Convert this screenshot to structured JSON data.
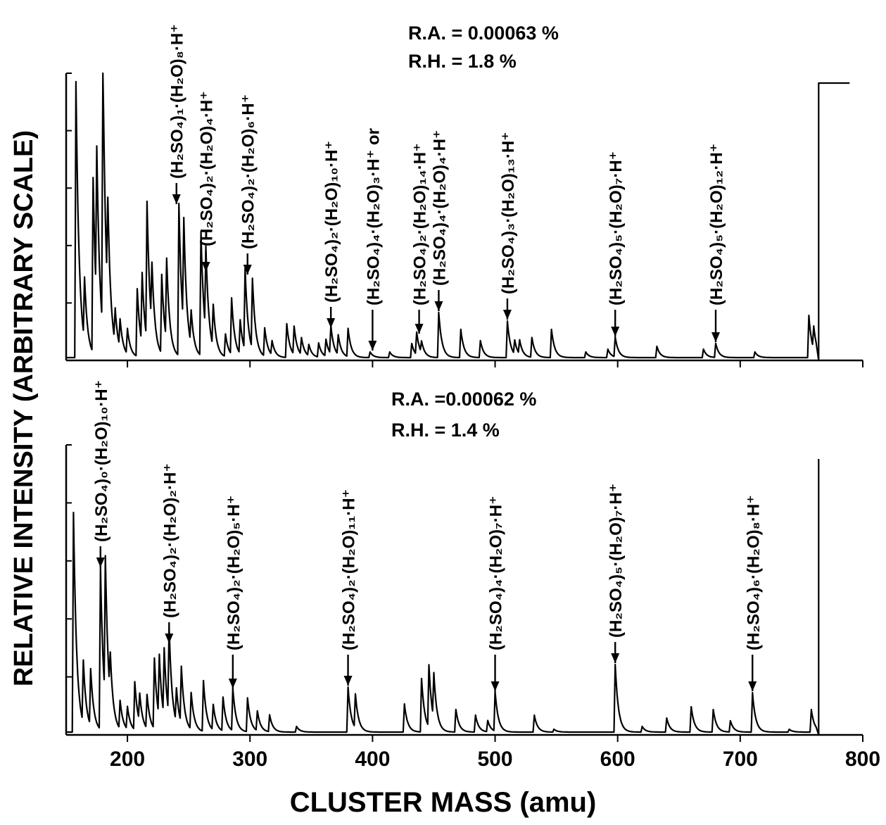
{
  "chart_data": [
    {
      "type": "line",
      "panel": "top",
      "conditions": [
        "R.A. = 0.00063 %",
        "R.H. = 1.8 %"
      ],
      "xlabel": "CLUSTER MASS (amu)",
      "ylabel": "RELATIVE INTENSITY (ARBITRARY SCALE)",
      "xlim": [
        150,
        800
      ],
      "peaks": [
        {
          "x": 158,
          "y": 0.98
        },
        {
          "x": 165,
          "y": 0.22
        },
        {
          "x": 172,
          "y": 0.62
        },
        {
          "x": 175,
          "y": 0.55
        },
        {
          "x": 180,
          "y": 0.96
        },
        {
          "x": 184,
          "y": 0.34
        },
        {
          "x": 190,
          "y": 0.12
        },
        {
          "x": 194,
          "y": 0.1
        },
        {
          "x": 200,
          "y": 0.09
        },
        {
          "x": 208,
          "y": 0.24
        },
        {
          "x": 212,
          "y": 0.25
        },
        {
          "x": 216,
          "y": 0.49
        },
        {
          "x": 220,
          "y": 0.22
        },
        {
          "x": 228,
          "y": 0.28
        },
        {
          "x": 232,
          "y": 0.29
        },
        {
          "x": 242,
          "y": 0.54
        },
        {
          "x": 246,
          "y": 0.38
        },
        {
          "x": 252,
          "y": 0.12
        },
        {
          "x": 260,
          "y": 0.44
        },
        {
          "x": 264,
          "y": 0.3
        },
        {
          "x": 270,
          "y": 0.15
        },
        {
          "x": 280,
          "y": 0.08
        },
        {
          "x": 285,
          "y": 0.2
        },
        {
          "x": 292,
          "y": 0.12
        },
        {
          "x": 296,
          "y": 0.29
        },
        {
          "x": 302,
          "y": 0.25
        },
        {
          "x": 312,
          "y": 0.1
        },
        {
          "x": 318,
          "y": 0.05
        },
        {
          "x": 330,
          "y": 0.12
        },
        {
          "x": 336,
          "y": 0.1
        },
        {
          "x": 342,
          "y": 0.06
        },
        {
          "x": 348,
          "y": 0.04
        },
        {
          "x": 356,
          "y": 0.05
        },
        {
          "x": 362,
          "y": 0.06
        },
        {
          "x": 366,
          "y": 0.1
        },
        {
          "x": 372,
          "y": 0.07
        },
        {
          "x": 380,
          "y": 0.1
        },
        {
          "x": 398,
          "y": 0.02
        },
        {
          "x": 414,
          "y": 0.02
        },
        {
          "x": 432,
          "y": 0.05
        },
        {
          "x": 436,
          "y": 0.08
        },
        {
          "x": 440,
          "y": 0.04
        },
        {
          "x": 454,
          "y": 0.16
        },
        {
          "x": 472,
          "y": 0.1
        },
        {
          "x": 488,
          "y": 0.06
        },
        {
          "x": 510,
          "y": 0.13
        },
        {
          "x": 516,
          "y": 0.05
        },
        {
          "x": 520,
          "y": 0.05
        },
        {
          "x": 530,
          "y": 0.07
        },
        {
          "x": 546,
          "y": 0.1
        },
        {
          "x": 574,
          "y": 0.02
        },
        {
          "x": 592,
          "y": 0.03
        },
        {
          "x": 598,
          "y": 0.07
        },
        {
          "x": 632,
          "y": 0.04
        },
        {
          "x": 670,
          "y": 0.03
        },
        {
          "x": 680,
          "y": 0.05
        },
        {
          "x": 712,
          "y": 0.02
        },
        {
          "x": 756,
          "y": 0.15
        },
        {
          "x": 760,
          "y": 0.08
        }
      ],
      "labels": [
        {
          "text": "(H₂SO₄)₁·(H₂O)₈·H⁺",
          "x": 240
        },
        {
          "text": "(H₂SO₄)₂·(H₂O)₄·H⁺",
          "x": 264
        },
        {
          "text": "(H₂SO₄)₂·(H₂O)₆·H⁺",
          "x": 298
        },
        {
          "text": "(H₂SO₄)₂·(H₂O)₁₀·H⁺",
          "x": 366
        },
        {
          "text": "(H₂SO₄)₄·(H₂O)₃·H⁺ or",
          "x": 400
        },
        {
          "text": "(H₂SO₄)₂·(H₂O)₁₄·H⁺",
          "x": 438
        },
        {
          "text": "(H₂SO₄)₄·(H₂O)₄·H⁺",
          "x": 454
        },
        {
          "text": "(H₂SO₄)₃·(H₂O)₁₃·H⁺",
          "x": 510
        },
        {
          "text": "(H₂SO₄)₅·(H₂O)₇·H⁺",
          "x": 598
        },
        {
          "text": "(H₂SO₄)₅·(H₂O)₁₂·H⁺",
          "x": 680
        }
      ]
    },
    {
      "type": "line",
      "panel": "bottom",
      "conditions": [
        "R.A. =0.00062 %",
        "R.H. = 1.4 %"
      ],
      "xlabel": "CLUSTER MASS (amu)",
      "ylabel": "RELATIVE INTENSITY (ARBITRARY SCALE)",
      "xlim": [
        150,
        800
      ],
      "xticks": [
        200,
        300,
        400,
        500,
        600,
        700,
        800
      ],
      "peaks": [
        {
          "x": 156,
          "y": 0.78
        },
        {
          "x": 164,
          "y": 0.22
        },
        {
          "x": 170,
          "y": 0.2
        },
        {
          "x": 178,
          "y": 0.58
        },
        {
          "x": 182,
          "y": 0.5
        },
        {
          "x": 186,
          "y": 0.15
        },
        {
          "x": 194,
          "y": 0.1
        },
        {
          "x": 200,
          "y": 0.08
        },
        {
          "x": 206,
          "y": 0.17
        },
        {
          "x": 210,
          "y": 0.1
        },
        {
          "x": 216,
          "y": 0.12
        },
        {
          "x": 222,
          "y": 0.25
        },
        {
          "x": 226,
          "y": 0.22
        },
        {
          "x": 230,
          "y": 0.24
        },
        {
          "x": 234,
          "y": 0.31
        },
        {
          "x": 240,
          "y": 0.12
        },
        {
          "x": 244,
          "y": 0.2
        },
        {
          "x": 252,
          "y": 0.13
        },
        {
          "x": 262,
          "y": 0.18
        },
        {
          "x": 270,
          "y": 0.09
        },
        {
          "x": 278,
          "y": 0.12
        },
        {
          "x": 286,
          "y": 0.15
        },
        {
          "x": 298,
          "y": 0.12
        },
        {
          "x": 306,
          "y": 0.07
        },
        {
          "x": 316,
          "y": 0.06
        },
        {
          "x": 338,
          "y": 0.02
        },
        {
          "x": 380,
          "y": 0.16
        },
        {
          "x": 386,
          "y": 0.12
        },
        {
          "x": 426,
          "y": 0.1
        },
        {
          "x": 440,
          "y": 0.19
        },
        {
          "x": 446,
          "y": 0.22
        },
        {
          "x": 450,
          "y": 0.16
        },
        {
          "x": 468,
          "y": 0.08
        },
        {
          "x": 484,
          "y": 0.06
        },
        {
          "x": 494,
          "y": 0.04
        },
        {
          "x": 500,
          "y": 0.14
        },
        {
          "x": 532,
          "y": 0.06
        },
        {
          "x": 548,
          "y": 0.01
        },
        {
          "x": 598,
          "y": 0.24
        },
        {
          "x": 620,
          "y": 0.02
        },
        {
          "x": 640,
          "y": 0.05
        },
        {
          "x": 660,
          "y": 0.09
        },
        {
          "x": 678,
          "y": 0.08
        },
        {
          "x": 692,
          "y": 0.04
        },
        {
          "x": 710,
          "y": 0.14
        },
        {
          "x": 740,
          "y": 0.01
        },
        {
          "x": 758,
          "y": 0.08
        }
      ],
      "labels": [
        {
          "text": "(H₂SO₄)₀·(H₂O)₁₀·H⁺",
          "x": 178
        },
        {
          "text": "(H₂SO₄)₂·(H₂O)₂·H⁺",
          "x": 234
        },
        {
          "text": "(H₂SO₄)₂·(H₂O)₅·H⁺",
          "x": 286
        },
        {
          "text": "(H₂SO₄)₂·(H₂O)₁₁·H⁺",
          "x": 380
        },
        {
          "text": "(H₂SO₄)₄·(H₂O)₇·H⁺",
          "x": 500
        },
        {
          "text": "(H₂SO₄)₅·(H₂O)₇·H⁺",
          "x": 598
        },
        {
          "text": "(H₂SO₄)₆·(H₂O)₈·H⁺",
          "x": 710
        }
      ]
    }
  ],
  "ylabel": "RELATIVE INTENSITY (ARBITRARY SCALE)",
  "xlabel": "CLUSTER MASS (amu)",
  "top_conditions": [
    "R.A. = 0.00063 %",
    "R.H. = 1.8 %"
  ],
  "bottom_conditions": [
    "R.A. =0.00062 %",
    "R.H. = 1.4 %"
  ]
}
